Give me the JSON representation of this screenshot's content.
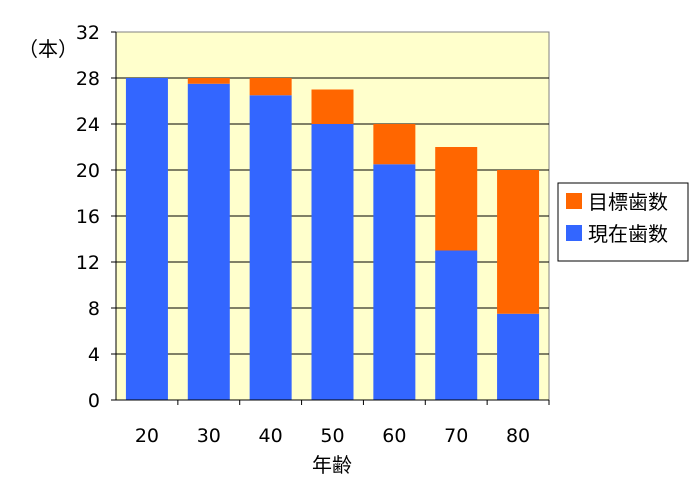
{
  "chart_data": {
    "type": "bar",
    "stacked": true,
    "categories": [
      "20",
      "30",
      "40",
      "50",
      "60",
      "70",
      "80"
    ],
    "series": [
      {
        "name": "現在歯数",
        "values": [
          28,
          27.5,
          26.5,
          24,
          20.5,
          13,
          7.5
        ],
        "color": "#3366ff"
      },
      {
        "name": "目標歯数",
        "values": [
          0,
          0.5,
          1.5,
          3,
          3.5,
          9,
          12.5
        ],
        "color": "#ff6600"
      }
    ],
    "legend_order": [
      "目標歯数",
      "現在歯数"
    ],
    "xlabel": "年齢",
    "ylabel": "（本）",
    "ylim": [
      0,
      32
    ],
    "yticks": [
      0,
      4,
      8,
      12,
      16,
      20,
      24,
      28,
      32
    ],
    "grid": true,
    "legend_position": "right",
    "plot_background": "#ffffcc"
  }
}
